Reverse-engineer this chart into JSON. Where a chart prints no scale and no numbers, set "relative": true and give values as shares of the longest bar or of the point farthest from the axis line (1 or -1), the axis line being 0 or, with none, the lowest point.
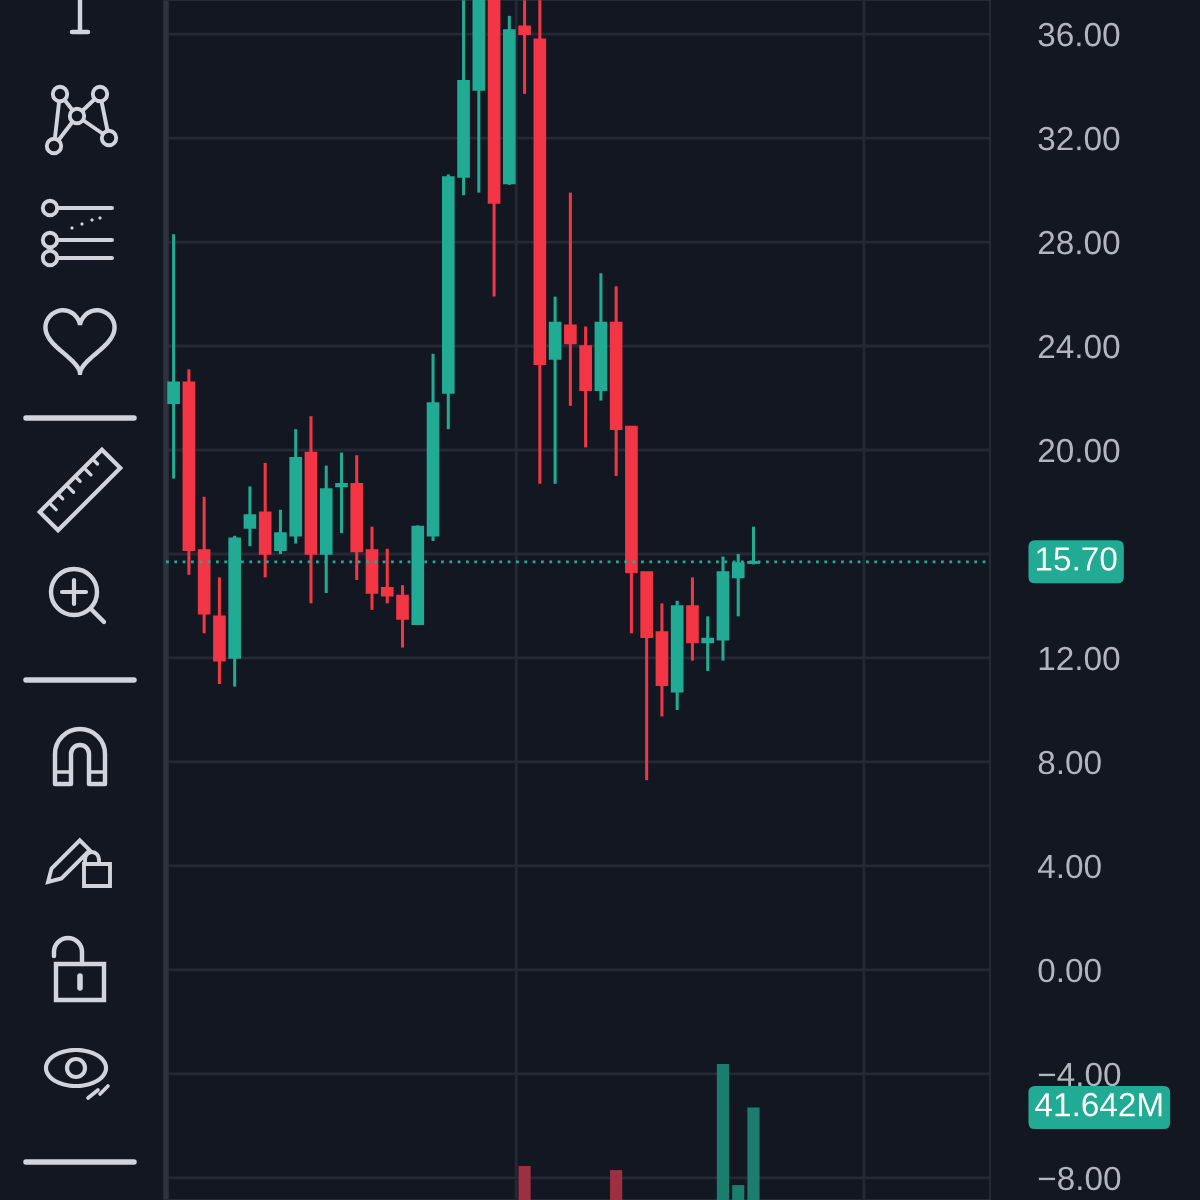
{
  "chart_data": [
    {
      "type": "candlestick",
      "categories": [
        null,
        null,
        null,
        null,
        null,
        null,
        null,
        null,
        null,
        null,
        null,
        null,
        null,
        null,
        null,
        null,
        null,
        null,
        null,
        null,
        null,
        null,
        null,
        null,
        null,
        null,
        null,
        null,
        null,
        null,
        null,
        null,
        null,
        null,
        null,
        null,
        null,
        null,
        null,
        null,
        null,
        null,
        null,
        null,
        null,
        null,
        null,
        null,
        null,
        null,
        null,
        null,
        null,
        null
      ],
      "ohlc": [
        [
          21.8,
          28.3,
          18.9,
          22.6
        ],
        [
          22.6,
          23.1,
          15.2,
          16.15
        ],
        [
          16.15,
          18.2,
          12.95,
          13.7
        ],
        [
          13.6,
          15.1,
          11.0,
          11.9
        ],
        [
          12.0,
          16.7,
          10.9,
          16.6
        ],
        [
          17.0,
          18.6,
          16.3,
          17.5
        ],
        [
          17.6,
          19.5,
          15.1,
          16.0
        ],
        [
          16.15,
          17.7,
          16.0,
          16.8
        ],
        [
          16.7,
          20.8,
          16.4,
          19.7
        ],
        [
          19.9,
          21.3,
          14.1,
          16.0
        ],
        [
          16.0,
          19.4,
          14.5,
          18.5
        ],
        [
          18.6,
          19.9,
          16.8,
          18.7
        ],
        [
          18.7,
          19.8,
          15.0,
          16.1
        ],
        [
          16.15,
          17.05,
          13.85,
          14.5
        ],
        [
          14.7,
          16.2,
          14.1,
          14.4
        ],
        [
          14.4,
          14.8,
          12.4,
          13.5
        ],
        [
          13.3,
          17.1,
          13.3,
          17.05
        ],
        [
          16.7,
          23.7,
          16.5,
          21.8
        ],
        [
          22.2,
          30.6,
          20.8,
          30.5
        ],
        [
          30.5,
          37.3,
          29.8,
          34.2
        ],
        [
          33.85,
          37.3,
          29.9,
          37.3
        ],
        [
          37.3,
          37.3,
          25.9,
          29.5
        ],
        [
          30.25,
          36.7,
          30.2,
          36.15
        ],
        [
          36.3,
          37.3,
          33.7,
          36.0
        ],
        [
          35.8,
          37.3,
          18.7,
          23.3
        ],
        [
          23.5,
          25.9,
          18.7,
          24.9
        ],
        [
          24.8,
          29.9,
          21.7,
          24.1
        ],
        [
          24.0,
          24.75,
          20.1,
          22.3
        ],
        [
          22.3,
          26.8,
          21.9,
          24.9
        ],
        [
          24.9,
          26.3,
          19.0,
          20.8
        ],
        [
          20.9,
          20.9,
          12.95,
          15.3
        ],
        [
          15.3,
          15.3,
          7.3,
          12.8
        ],
        [
          13.0,
          14.1,
          9.75,
          10.95
        ],
        [
          10.7,
          14.2,
          10.0,
          14.0
        ],
        [
          14.0,
          15.1,
          11.9,
          12.6
        ],
        [
          12.6,
          13.6,
          11.5,
          12.75
        ],
        [
          12.7,
          15.9,
          11.9,
          15.3
        ],
        [
          15.1,
          16.0,
          13.6,
          15.65
        ],
        [
          15.65,
          17.05,
          15.6,
          15.7
        ],
        null,
        null,
        null,
        null,
        null,
        null,
        null,
        null,
        null,
        null,
        null,
        null,
        null,
        null,
        null
      ],
      "colors": [
        "#22ab94",
        "#f23645",
        "#f23645",
        "#f23645",
        "#22ab94",
        "#22ab94",
        "#f23645",
        "#22ab94",
        "#22ab94",
        "#f23645",
        "#22ab94",
        "#22ab94",
        "#f23645",
        "#f23645",
        "#f23645",
        "#f23645",
        "#22ab94",
        "#22ab94",
        "#22ab94",
        "#22ab94",
        "#22ab94",
        "#f23645",
        "#22ab94",
        "#f23645",
        "#f23645",
        "#22ab94",
        "#f23645",
        "#f23645",
        "#22ab94",
        "#f23645",
        "#f23645",
        "#f23645",
        "#f23645",
        "#22ab94",
        "#f23645",
        "#22ab94",
        "#22ab94",
        "#22ab94",
        "#22ab94",
        null,
        null,
        null,
        null,
        null,
        null,
        null,
        null,
        null,
        null,
        null,
        null,
        null,
        null,
        null
      ],
      "ylim": [
        -8.85,
        37.31
      ],
      "yticks": [
        {
          "value": -8,
          "label": "−8.00"
        },
        {
          "value": -4,
          "label": "−4.00"
        },
        {
          "value": 0,
          "label": "0.00"
        },
        {
          "value": 4,
          "label": "4.00"
        },
        {
          "value": 8,
          "label": "8.00"
        },
        {
          "value": 12,
          "label": "12.00"
        },
        {
          "value": 16,
          "label": null
        },
        {
          "value": 20,
          "label": "20.00"
        },
        {
          "value": 24,
          "label": "24.00"
        },
        {
          "value": 28,
          "label": "28.00"
        },
        {
          "value": 32,
          "label": "32.00"
        },
        {
          "value": 36,
          "label": "36.00"
        }
      ],
      "ref_lines": [
        {
          "axis": "y",
          "value": 15.7,
          "label": "15.70",
          "color": "#22ab94",
          "line_style": "dotted"
        }
      ],
      "grid": "y",
      "tick_labels": "y"
    },
    {
      "type": "bar",
      "relative": true,
      "categories": [
        null,
        null,
        null,
        null,
        null,
        null,
        null,
        null,
        null,
        null,
        null,
        null,
        null,
        null,
        null,
        null,
        null,
        null,
        null,
        null,
        null,
        null,
        null,
        null,
        null,
        null,
        null,
        null,
        null,
        null,
        null,
        null,
        null,
        null,
        null,
        null,
        null,
        null,
        null,
        null,
        null,
        null,
        null,
        null,
        null,
        null,
        null,
        null,
        null,
        null,
        null,
        null,
        null,
        null
      ],
      "values": [
        null,
        null,
        null,
        null,
        null,
        null,
        null,
        null,
        null,
        null,
        null,
        null,
        null,
        null,
        null,
        null,
        null,
        null,
        null,
        null,
        null,
        null,
        null,
        0.25,
        null,
        null,
        null,
        null,
        null,
        0.22,
        null,
        null,
        null,
        null,
        null,
        null,
        1,
        0.11,
        0.68,
        null,
        null,
        null,
        null,
        null,
        null,
        null,
        null,
        null,
        null,
        null,
        null,
        null,
        null,
        null
      ],
      "colors": [
        "#1b7d6e",
        "#9c3040",
        "#9c3040",
        "#9c3040",
        "#1b7d6e",
        "#1b7d6e",
        "#9c3040",
        "#1b7d6e",
        "#1b7d6e",
        "#9c3040",
        "#1b7d6e",
        "#1b7d6e",
        "#9c3040",
        "#9c3040",
        "#9c3040",
        "#9c3040",
        "#1b7d6e",
        "#1b7d6e",
        "#1b7d6e",
        "#1b7d6e",
        "#1b7d6e",
        "#9c3040",
        "#1b7d6e",
        "#9c3040",
        "#9c3040",
        "#1b7d6e",
        "#9c3040",
        "#9c3040",
        "#1b7d6e",
        "#9c3040",
        "#9c3040",
        "#9c3040",
        "#9c3040",
        "#1b7d6e",
        "#9c3040",
        "#1b7d6e",
        "#1b7d6e",
        "#1b7d6e",
        "#1b7d6e",
        null,
        null,
        null,
        null,
        null,
        null,
        null,
        null,
        null,
        null,
        null,
        null,
        null,
        null,
        null
      ],
      "annotations": [
        "41.642M"
      ],
      "tick_labels": false
    }
  ]
}
